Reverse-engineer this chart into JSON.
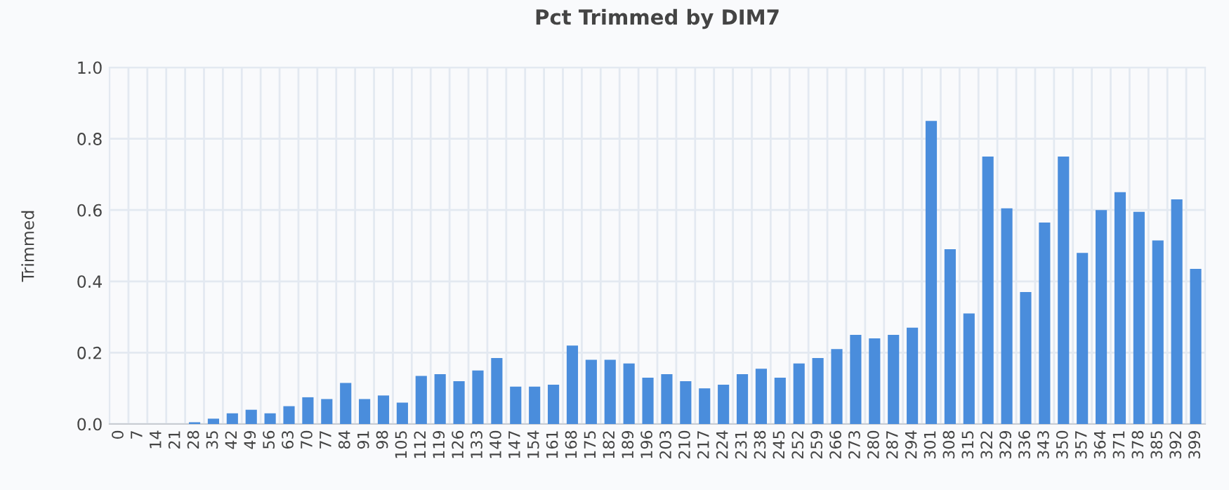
{
  "chart_data": {
    "type": "bar",
    "title": "Pct Trimmed by DIM7",
    "ylabel": "Trimmed",
    "categories": [
      "0",
      "7",
      "14",
      "21",
      "28",
      "35",
      "42",
      "49",
      "56",
      "63",
      "70",
      "77",
      "84",
      "91",
      "98",
      "105",
      "112",
      "119",
      "126",
      "133",
      "140",
      "147",
      "154",
      "161",
      "168",
      "175",
      "182",
      "189",
      "196",
      "203",
      "210",
      "217",
      "224",
      "231",
      "238",
      "245",
      "252",
      "259",
      "266",
      "273",
      "280",
      "287",
      "294",
      "301",
      "308",
      "315",
      "322",
      "329",
      "336",
      "343",
      "350",
      "357",
      "364",
      "371",
      "378",
      "385",
      "392",
      "399"
    ],
    "values": [
      0,
      0,
      0,
      0,
      0.005,
      0.015,
      0.03,
      0.04,
      0.03,
      0.05,
      0.075,
      0.07,
      0.115,
      0.07,
      0.08,
      0.06,
      0.135,
      0.14,
      0.12,
      0.15,
      0.185,
      0.105,
      0.105,
      0.11,
      0.22,
      0.18,
      0.18,
      0.17,
      0.13,
      0.14,
      0.12,
      0.1,
      0.11,
      0.14,
      0.155,
      0.13,
      0.17,
      0.185,
      0.21,
      0.25,
      0.24,
      0.25,
      0.27,
      0.85,
      0.49,
      0.31,
      0.75,
      0.605,
      0.37,
      0.565,
      0.75,
      0.48,
      0.6,
      0.65,
      0.595,
      0.515,
      0.63,
      0.435
    ],
    "color": "#4a8ddc",
    "ylim": [
      0,
      1.0
    ],
    "yticks": [
      {
        "value": 0,
        "label": "0.0"
      },
      {
        "value": 0.2,
        "label": "0.2"
      },
      {
        "value": 0.4,
        "label": "0.4"
      },
      {
        "value": 0.6,
        "label": "0.6"
      },
      {
        "value": 0.8,
        "label": "0.8"
      },
      {
        "value": 1.0,
        "label": "1.0"
      }
    ],
    "grid": true,
    "legend": false
  }
}
